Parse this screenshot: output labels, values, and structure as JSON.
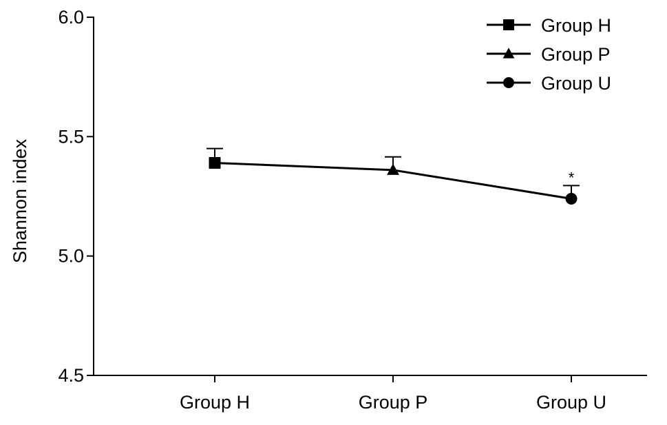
{
  "chart_data": {
    "type": "line",
    "ylabel": "Shannon index",
    "xlabel": "",
    "categories": [
      "Group H",
      "Group P",
      "Group U"
    ],
    "ylim": [
      4.5,
      6.0
    ],
    "yticks": [
      "4.5",
      "5.0",
      "5.5",
      "6.0"
    ],
    "grid": false,
    "legend_position": "top-right",
    "series": [
      {
        "values": [
          5.39,
          5.36,
          5.24
        ],
        "error_upper": [
          0.06,
          0.055,
          0.055
        ],
        "markers": [
          "square",
          "triangle",
          "circle"
        ]
      }
    ],
    "legend": [
      {
        "label": "Group H",
        "marker": "square"
      },
      {
        "label": "Group P",
        "marker": "triangle"
      },
      {
        "label": "Group U",
        "marker": "circle"
      }
    ],
    "annotations": [
      {
        "category": "Group U",
        "text": "*"
      }
    ],
    "colors": {
      "line": "#000000",
      "marker": "#000000"
    }
  }
}
